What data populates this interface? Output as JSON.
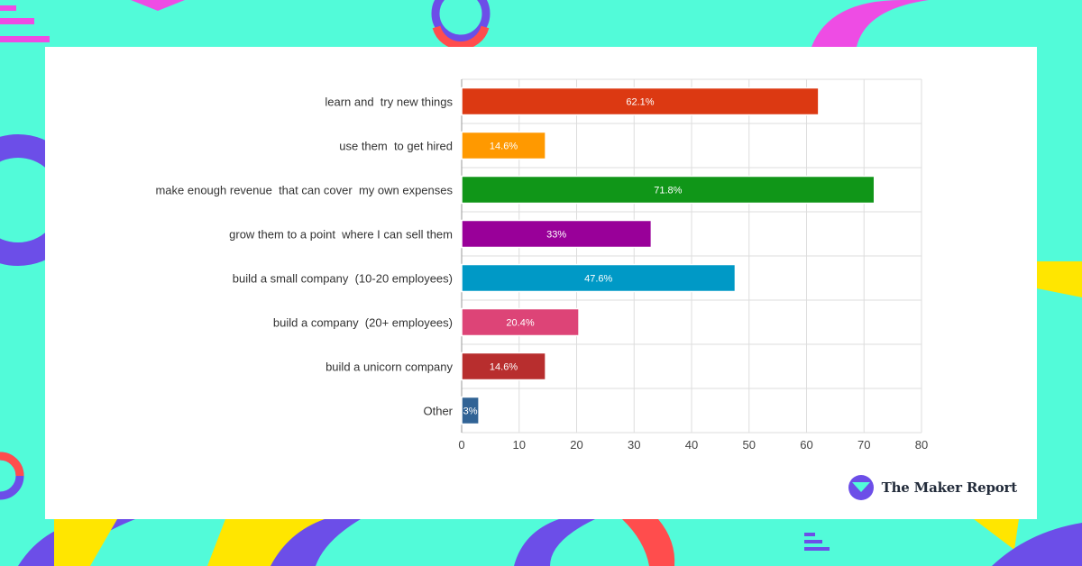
{
  "brand": {
    "name": "The Maker Report",
    "logo_icon": "maker-report-logo-icon",
    "logo_colors": [
      "#6c4ee8",
      "#52fbd9"
    ]
  },
  "background": {
    "color": "#52fbd9",
    "accent_colors": [
      "#6c4ee8",
      "#ee4ce4",
      "#ff4d4d",
      "#ffe600"
    ]
  },
  "chart_data": {
    "type": "bar",
    "orientation": "horizontal",
    "categories": [
      "learn and  try new things",
      "use them  to get hired",
      "make enough revenue  that can cover  my own expenses",
      "grow them to a point  where I can sell them",
      "build a small company  (10-20 employees)",
      "build a company  (20+ employees)",
      "build a unicorn company",
      "Other"
    ],
    "values": [
      62.1,
      14.6,
      71.8,
      33,
      47.6,
      20.4,
      14.6,
      3
    ],
    "value_labels": [
      "62.1%",
      "14.6%",
      "71.8%",
      "33%",
      "47.6%",
      "20.4%",
      "14.6%",
      "3%"
    ],
    "colors": [
      "#dc3912",
      "#ff9900",
      "#109618",
      "#990099",
      "#0099c6",
      "#dd4477",
      "#b82e2e",
      "#316395"
    ],
    "xlim": [
      0,
      80
    ],
    "xticks": [
      "0",
      "10",
      "20",
      "30",
      "40",
      "50",
      "60",
      "70",
      "80"
    ],
    "grid": true,
    "legend": "none"
  }
}
